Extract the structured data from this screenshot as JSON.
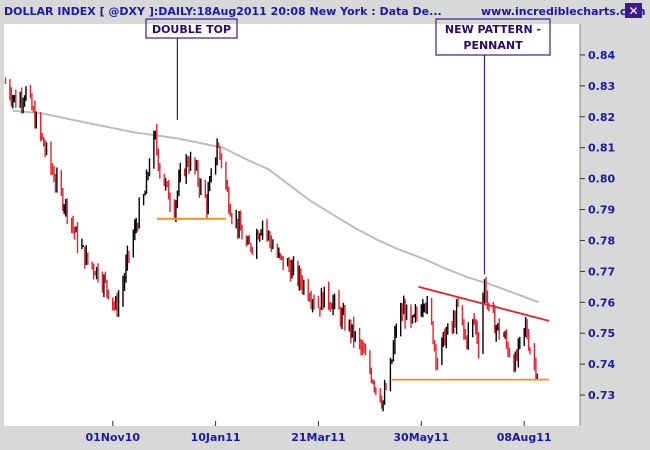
{
  "header": {
    "title": "DOLLAR INDEX [ @DXY ]:DAILY:18Aug2011 20:08 New York  : Data De...",
    "website": "www.incrediblecharts.com",
    "close_symbol": "✕"
  },
  "annotations": {
    "double_top": "DOUBLE TOP",
    "new_pattern_line1": "NEW PATTERN -",
    "new_pattern_line2": "PENNANT"
  },
  "colors": {
    "background": "#ffffff",
    "frame": "#d8d8d8",
    "up_bar": "#000000",
    "down_bar": "#e8212b",
    "moving_average": "#bdbdbd",
    "support_line": "#ff8c1a",
    "resistance_line": "#e8212b",
    "annotation_line": "#3a1d8a"
  },
  "chart_data": {
    "type": "line",
    "title": "DOLLAR INDEX [ @DXY ]:DAILY:18Aug2011 20:08 New York",
    "xlabel": "",
    "ylabel": "",
    "x_range": [
      "2010-08-19",
      "2011-09-15"
    ],
    "ylim": [
      0.72,
      0.85
    ],
    "x_ticks": [
      {
        "date": "2010-11-01",
        "label": "01Nov10"
      },
      {
        "date": "2011-01-10",
        "label": "10Jan11"
      },
      {
        "date": "2011-03-21",
        "label": "21Mar11"
      },
      {
        "date": "2011-05-30",
        "label": "30May11"
      },
      {
        "date": "2011-08-08",
        "label": "08Aug11"
      }
    ],
    "y_ticks": [
      0.73,
      0.74,
      0.75,
      0.76,
      0.77,
      0.78,
      0.79,
      0.8,
      0.81,
      0.82,
      0.83,
      0.84
    ],
    "grid": false,
    "series": [
      {
        "style": "price",
        "points": [
          [
            "2010-08-20",
            0.831
          ],
          [
            "2010-08-27",
            0.825
          ],
          [
            "2010-09-03",
            0.828
          ],
          [
            "2010-09-10",
            0.818
          ],
          [
            "2010-09-17",
            0.808
          ],
          [
            "2010-09-24",
            0.798
          ],
          [
            "2010-10-01",
            0.79
          ],
          [
            "2010-10-08",
            0.78
          ],
          [
            "2010-10-15",
            0.773
          ],
          [
            "2010-10-22",
            0.77
          ],
          [
            "2010-10-29",
            0.764
          ],
          [
            "2010-11-03",
            0.758
          ],
          [
            "2010-11-08",
            0.766
          ],
          [
            "2010-11-12",
            0.776
          ],
          [
            "2010-11-16",
            0.783
          ],
          [
            "2010-11-19",
            0.789
          ],
          [
            "2010-11-23",
            0.795
          ],
          [
            "2010-11-26",
            0.806
          ],
          [
            "2010-11-30",
            0.813
          ],
          [
            "2010-12-03",
            0.803
          ],
          [
            "2010-12-08",
            0.796
          ],
          [
            "2010-12-13",
            0.791
          ],
          [
            "2010-12-17",
            0.8
          ],
          [
            "2010-12-22",
            0.806
          ],
          [
            "2010-12-27",
            0.803
          ],
          [
            "2010-12-31",
            0.797
          ],
          [
            "2011-01-04",
            0.792
          ],
          [
            "2011-01-07",
            0.8
          ],
          [
            "2011-01-11",
            0.811
          ],
          [
            "2011-01-14",
            0.806
          ],
          [
            "2011-01-18",
            0.795
          ],
          [
            "2011-01-21",
            0.789
          ],
          [
            "2011-01-26",
            0.784
          ],
          [
            "2011-02-01",
            0.777
          ],
          [
            "2011-02-07",
            0.782
          ],
          [
            "2011-02-11",
            0.786
          ],
          [
            "2011-02-16",
            0.78
          ],
          [
            "2011-02-22",
            0.774
          ],
          [
            "2011-02-28",
            0.772
          ],
          [
            "2011-03-07",
            0.768
          ],
          [
            "2011-03-14",
            0.764
          ],
          [
            "2011-03-21",
            0.759
          ],
          [
            "2011-03-25",
            0.762
          ],
          [
            "2011-03-31",
            0.76
          ],
          [
            "2011-04-06",
            0.755
          ],
          [
            "2011-04-12",
            0.751
          ],
          [
            "2011-04-18",
            0.746
          ],
          [
            "2011-04-25",
            0.738
          ],
          [
            "2011-04-29",
            0.733
          ],
          [
            "2011-05-04",
            0.728
          ],
          [
            "2011-05-09",
            0.738
          ],
          [
            "2011-05-13",
            0.752
          ],
          [
            "2011-05-18",
            0.758
          ],
          [
            "2011-05-23",
            0.752
          ],
          [
            "2011-05-27",
            0.756
          ],
          [
            "2011-06-01",
            0.762
          ],
          [
            "2011-06-06",
            0.752
          ],
          [
            "2011-06-10",
            0.741
          ],
          [
            "2011-06-15",
            0.749
          ],
          [
            "2011-06-20",
            0.752
          ],
          [
            "2011-06-24",
            0.758
          ],
          [
            "2011-06-29",
            0.748
          ],
          [
            "2011-07-05",
            0.754
          ],
          [
            "2011-07-08",
            0.747
          ],
          [
            "2011-07-12",
            0.766
          ],
          [
            "2011-07-15",
            0.757
          ],
          [
            "2011-07-20",
            0.752
          ],
          [
            "2011-07-25",
            0.749
          ],
          [
            "2011-07-28",
            0.745
          ],
          [
            "2011-08-02",
            0.74
          ],
          [
            "2011-08-05",
            0.746
          ],
          [
            "2011-08-09",
            0.752
          ],
          [
            "2011-08-12",
            0.745
          ],
          [
            "2011-08-17",
            0.738
          ],
          [
            "2011-08-18",
            0.741
          ]
        ]
      },
      {
        "style": "moving_average",
        "points": [
          [
            "2010-08-25",
            0.822
          ],
          [
            "2010-09-15",
            0.821
          ],
          [
            "2010-10-15",
            0.818
          ],
          [
            "2010-11-15",
            0.815
          ],
          [
            "2010-12-15",
            0.813
          ],
          [
            "2011-01-15",
            0.81
          ],
          [
            "2011-02-01",
            0.806
          ],
          [
            "2011-02-15",
            0.803
          ],
          [
            "2011-03-01",
            0.798
          ],
          [
            "2011-03-15",
            0.793
          ],
          [
            "2011-04-01",
            0.788
          ],
          [
            "2011-04-15",
            0.784
          ],
          [
            "2011-05-01",
            0.78
          ],
          [
            "2011-05-15",
            0.777
          ],
          [
            "2011-06-01",
            0.774
          ],
          [
            "2011-06-15",
            0.771
          ],
          [
            "2011-07-01",
            0.768
          ],
          [
            "2011-07-15",
            0.766
          ],
          [
            "2011-08-01",
            0.763
          ],
          [
            "2011-08-18",
            0.76
          ]
        ]
      }
    ],
    "lines": [
      {
        "style": "support",
        "from": [
          "2010-12-01",
          0.787
        ],
        "to": [
          "2011-01-17",
          0.787
        ]
      },
      {
        "style": "support",
        "from": [
          "2011-05-10",
          0.735
        ],
        "to": [
          "2011-08-25",
          0.735
        ]
      },
      {
        "style": "resistance",
        "from": [
          "2011-05-28",
          0.765
        ],
        "to": [
          "2011-08-25",
          0.754
        ]
      }
    ],
    "callouts": [
      {
        "label_key": "double_top",
        "point": [
          "2010-12-15",
          0.819
        ]
      },
      {
        "label_key": "new_pattern",
        "point": [
          "2011-07-12",
          0.769
        ]
      }
    ]
  }
}
